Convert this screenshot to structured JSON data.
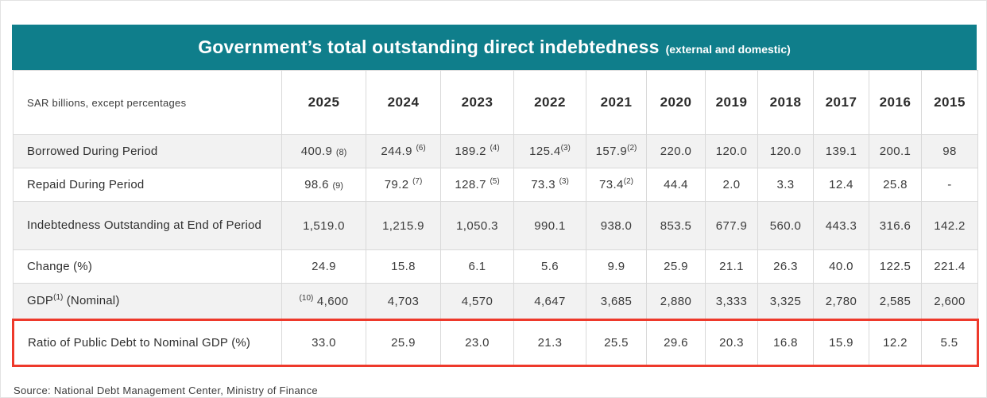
{
  "title": {
    "main": "Government’s total outstanding direct indebtedness",
    "suffix": "(external and domestic)"
  },
  "table": {
    "corner_label": "SAR billions, except percentages",
    "years": [
      "2025",
      "2024",
      "2023",
      "2022",
      "2021",
      "2020",
      "2019",
      "2018",
      "2017",
      "2016",
      "2015"
    ],
    "rows": [
      {
        "label": "Borrowed During Period",
        "shaded": true,
        "highlight": false,
        "cells": [
          {
            "v": "400.9",
            "note": "(8)",
            "pos": "after",
            "raised": false
          },
          {
            "v": "244.9",
            "note": "(6)",
            "pos": "after",
            "raised": true
          },
          {
            "v": "189.2",
            "note": "(4)",
            "pos": "after",
            "raised": true
          },
          {
            "v": "125.4",
            "note": "(3)",
            "pos": "after",
            "raised": true,
            "tight": true
          },
          {
            "v": "157.9",
            "note": "(2)",
            "pos": "after",
            "raised": true,
            "tight": true
          },
          "220.0",
          "120.0",
          "120.0",
          "139.1",
          "200.1",
          "98"
        ]
      },
      {
        "label": "Repaid During Period",
        "shaded": false,
        "highlight": false,
        "cells": [
          {
            "v": "98.6",
            "note": "(9)",
            "pos": "after",
            "raised": false
          },
          {
            "v": "79.2",
            "note": "(7)",
            "pos": "after",
            "raised": true
          },
          {
            "v": "128.7",
            "note": "(5)",
            "pos": "after",
            "raised": true
          },
          {
            "v": "73.3",
            "note": "(3)",
            "pos": "after",
            "raised": true
          },
          {
            "v": "73.4",
            "note": "(2)",
            "pos": "after",
            "raised": true,
            "tight": true
          },
          "44.4",
          "2.0",
          "3.3",
          "12.4",
          "25.8",
          "-"
        ]
      },
      {
        "label": "Indebtedness Outstanding at End of Period",
        "shaded": true,
        "highlight": false,
        "cells": [
          "1,519.0",
          "1,215.9",
          "1,050.3",
          "990.1",
          "938.0",
          "853.5",
          "677.9",
          "560.0",
          "443.3",
          "316.6",
          "142.2"
        ]
      },
      {
        "label": "Change (%)",
        "shaded": false,
        "highlight": false,
        "cells": [
          "24.9",
          "15.8",
          "6.1",
          "5.6",
          "9.9",
          "25.9",
          "21.1",
          "26.3",
          "40.0",
          "122.5",
          "221.4"
        ]
      },
      {
        "label": "GDP",
        "label_sup": "(1)",
        "label_suffix": " (Nominal)",
        "shaded": true,
        "highlight": false,
        "cells": [
          {
            "v": "4,600",
            "note": "(10)",
            "pos": "before",
            "raised": true
          },
          "4,703",
          "4,570",
          "4,647",
          "3,685",
          "2,880",
          "3,333",
          "3,325",
          "2,780",
          "2,585",
          "2,600"
        ]
      },
      {
        "label": "Ratio of Public Debt to Nominal GDP (%)",
        "shaded": false,
        "highlight": true,
        "cells": [
          "33.0",
          "25.9",
          "23.0",
          "21.3",
          "25.5",
          "29.6",
          "20.3",
          "16.8",
          "15.9",
          "12.2",
          "5.5"
        ]
      }
    ]
  },
  "source": "Source:  National Debt Management Center, Ministry of Finance",
  "colors": {
    "header_teal": "#0f7e8b",
    "highlight_red": "#ee392b",
    "row_stripe": "#f2f2f2",
    "border_gray": "#d9d9d9"
  }
}
